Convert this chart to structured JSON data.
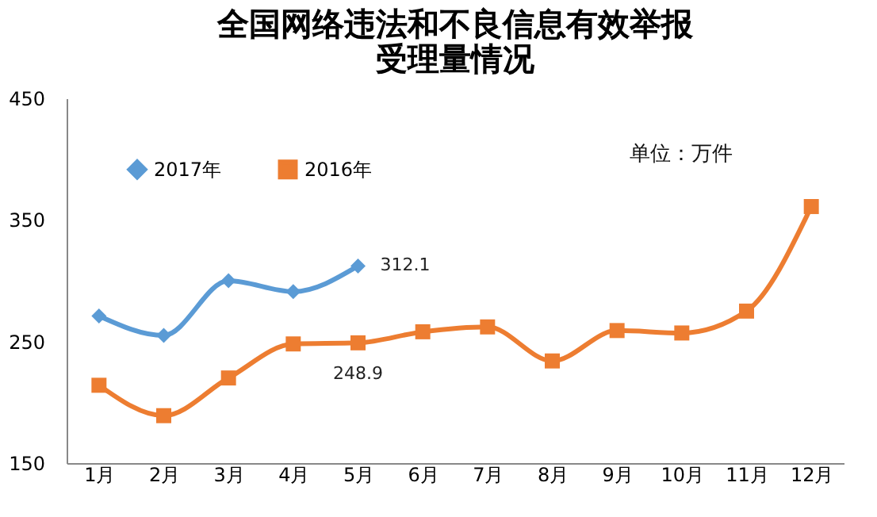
{
  "chart_data": {
    "type": "line",
    "title": [
      "全国网络违法和不良信息有效举报",
      "受理量情况"
    ],
    "categories": [
      "1月",
      "2月",
      "3月",
      "4月",
      "5月",
      "6月",
      "7月",
      "8月",
      "9月",
      "10月",
      "11月",
      "12月"
    ],
    "series": [
      {
        "name": "2017年",
        "color": "#5b9bd5",
        "marker": "diamond",
        "values": [
          271,
          255,
          300,
          291,
          312.1,
          null,
          null,
          null,
          null,
          null,
          null,
          null
        ],
        "value_labels": [
          null,
          null,
          null,
          null,
          "312.1",
          null,
          null,
          null,
          null,
          null,
          null,
          null
        ]
      },
      {
        "name": "2016年",
        "color": "#ed7d31",
        "marker": "square",
        "values": [
          214,
          189,
          220,
          248,
          248.9,
          258,
          262,
          234,
          259,
          257,
          275,
          361
        ],
        "value_labels": [
          null,
          null,
          null,
          null,
          "248.9",
          null,
          null,
          null,
          null,
          null,
          null,
          null
        ]
      }
    ],
    "ylim": [
      150,
      450
    ],
    "yticks": [
      150,
      250,
      350,
      450
    ],
    "grid": false,
    "legend": "top left",
    "annotations": [
      "单位：万件"
    ]
  }
}
